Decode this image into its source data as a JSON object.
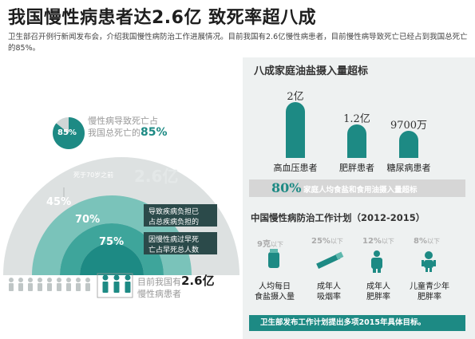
{
  "title": "我国慢性病患者达2.6亿 致死率超八成",
  "intro": "卫生部召开例行新闻发布会，介绍我国慢性病防治工作进展情况。目前我国有2.6亿慢性病患者，目前慢性病导致死亡已经占到我国总死亡的85%。",
  "left": {
    "pct_85": "85%",
    "death_line1": "慢性病导致死亡占",
    "death_line2_prefix": "我国总死亡的",
    "death_line2_value": "85%",
    "pct_45": "45%",
    "pct_70": "70%",
    "pct_75": "75%",
    "before70": "死于70岁之前",
    "ghost": "2.6亿",
    "burden_line1": "导致疾病负担已",
    "burden_line2": "占总疾病负担的",
    "early_line1": "因慢性病过早死",
    "early_line2": "亡占早死总人数",
    "patients_prefix": "目前我国有",
    "patients_value": "2.6亿",
    "patients_line2": "慢性病患者"
  },
  "right": {
    "salt_title": "八成家庭油盐摄入量超标",
    "bar_labels": [
      "2亿",
      "1.2亿",
      "9700万"
    ],
    "categories": [
      "高血压患者",
      "肥胖患者",
      "糖尿病患者"
    ],
    "pill_num": "80%",
    "pill_text": "家庭人均食盐和食用油摄入量超标",
    "plan_title": "中国慢性病防治工作计划（2012-2015）",
    "goals": [
      {
        "value": "9克",
        "suffix": "以下",
        "label1": "人均每日",
        "label2": "食盐摄入量"
      },
      {
        "value": "25%",
        "suffix": "以下",
        "label1": "成年人",
        "label2": "吸烟率"
      },
      {
        "value": "12%",
        "suffix": "以下",
        "label1": "成年人",
        "label2": "肥胖率"
      },
      {
        "value": "8%",
        "suffix": "以下",
        "label1": "儿童青少年",
        "label2": "肥胖率"
      }
    ],
    "footer": "卫生部发布工作计划提出多项2015年具体目标。"
  },
  "chart_data": {
    "type": "bar",
    "categories": [
      "高血压患者",
      "肥胖患者",
      "糖尿病患者"
    ],
    "values": [
      20000,
      12000,
      9700
    ]
  },
  "colors": {
    "teal": "#1d8a84",
    "light_teal": "#5fb8ae",
    "ring_light": "#7ac3ba",
    "ring_grey": "#c8cfcf",
    "dark": "#1e1e1e",
    "panel": "#eef1f1"
  }
}
